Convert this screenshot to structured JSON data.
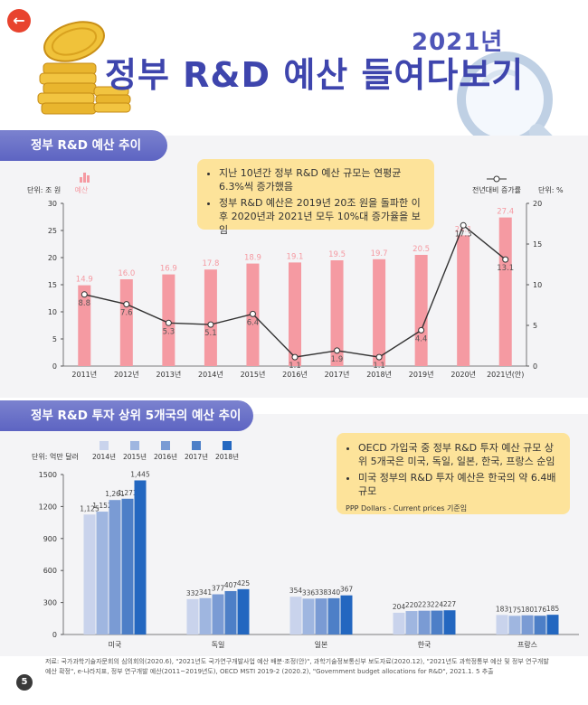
{
  "header": {
    "back_icon": "arrow-left-icon",
    "year": "2021년",
    "title": "정부 R&D 예산 들여다보기"
  },
  "section1": {
    "tab_label": "정부 R&D 예산 추이",
    "callout": [
      "지난 10년간 정부 R&D 예산 규모는 연평균 6.3%씩 증가했음",
      "정부 R&D 예산은 2019년 20조 원을 돌파한 이후 2020년과 2021년 모두 10%대 증가율을 보임"
    ]
  },
  "section2": {
    "tab_label": "정부 R&D 투자 상위 5개국의 예산 추이",
    "callout": [
      "OECD 가입국 중 정부 R&D 투자 예산 규모 상위 5개국은 미국, 독일, 일본, 한국, 프랑스 순임",
      "미국 정부의 R&D 투자 예산은 한국의 약 6.4배 규모"
    ],
    "note": "PPP Dollars - Current prices 기준임"
  },
  "chart_data": [
    {
      "type": "bar",
      "title": "정부 R&D 예산 추이",
      "categories": [
        "2011년",
        "2012년",
        "2013년",
        "2014년",
        "2015년",
        "2016년",
        "2017년",
        "2018년",
        "2019년",
        "2020년",
        "2021년(안)"
      ],
      "series": [
        {
          "name": "예산",
          "axis": "left",
          "values": [
            14.9,
            16.0,
            16.9,
            17.8,
            18.9,
            19.1,
            19.5,
            19.7,
            20.5,
            24.1,
            27.4
          ]
        },
        {
          "name": "전년대비 증가률",
          "axis": "right",
          "type": "line",
          "values": [
            8.8,
            7.6,
            5.3,
            5.1,
            6.4,
            1.1,
            1.9,
            1.1,
            4.4,
            17.3,
            13.1
          ]
        }
      ],
      "ylabel": "단위: 조 원",
      "y2label": "단위: %",
      "ylim": [
        0,
        30
      ],
      "yticks": [
        0,
        5,
        10,
        15,
        20,
        25,
        30
      ],
      "y2lim": [
        0,
        20
      ],
      "y2ticks": [
        0,
        5,
        10,
        15,
        20
      ],
      "legend": [
        "예산",
        "전년대비 증가률"
      ]
    },
    {
      "type": "bar",
      "title": "정부 R&D 투자 상위 5개국의 예산 추이",
      "categories": [
        "미국",
        "독일",
        "일본",
        "한국",
        "프랑스"
      ],
      "series": [
        {
          "name": "2014년",
          "color": "#c9d3ec",
          "values": [
            1125,
            332,
            354,
            204,
            183
          ]
        },
        {
          "name": "2015년",
          "color": "#9fb6e0",
          "values": [
            1152,
            341,
            336,
            220,
            175
          ]
        },
        {
          "name": "2016년",
          "color": "#7a9bd4",
          "values": [
            1261,
            377,
            338,
            223,
            180
          ]
        },
        {
          "name": "2017년",
          "color": "#4d7fc7",
          "values": [
            1273,
            407,
            340,
            224,
            176
          ]
        },
        {
          "name": "2018년",
          "color": "#2367c0",
          "values": [
            1445,
            425,
            367,
            227,
            185
          ]
        }
      ],
      "ylabel": "단위: 억만 달러",
      "ylim": [
        0,
        1500
      ],
      "yticks": [
        0,
        300,
        600,
        900,
        1200,
        1500
      ]
    }
  ],
  "footnote": "저료: 국가과학기술자문회의 심의회의(2020.6), \"2021년도 국가연구개발사업 예산 배분·조정(안)\", 과학기술정보통신부 보도자료(2020.12), \"2021년도 과학정통부 예산 및 정부 연구개발 예산 확정\", e-나라지표, 정부 연구개발 예산(2011~2019년도), OECD MSTI 2019-2 (2020.2), \"Government budget allocations for R&D\", 2021.1. 5 추출",
  "page_number": "5",
  "colors": {
    "accent": "#4e55b8",
    "bar1": "#f59aa2",
    "line": "#333333",
    "callout": "#fde39a"
  }
}
